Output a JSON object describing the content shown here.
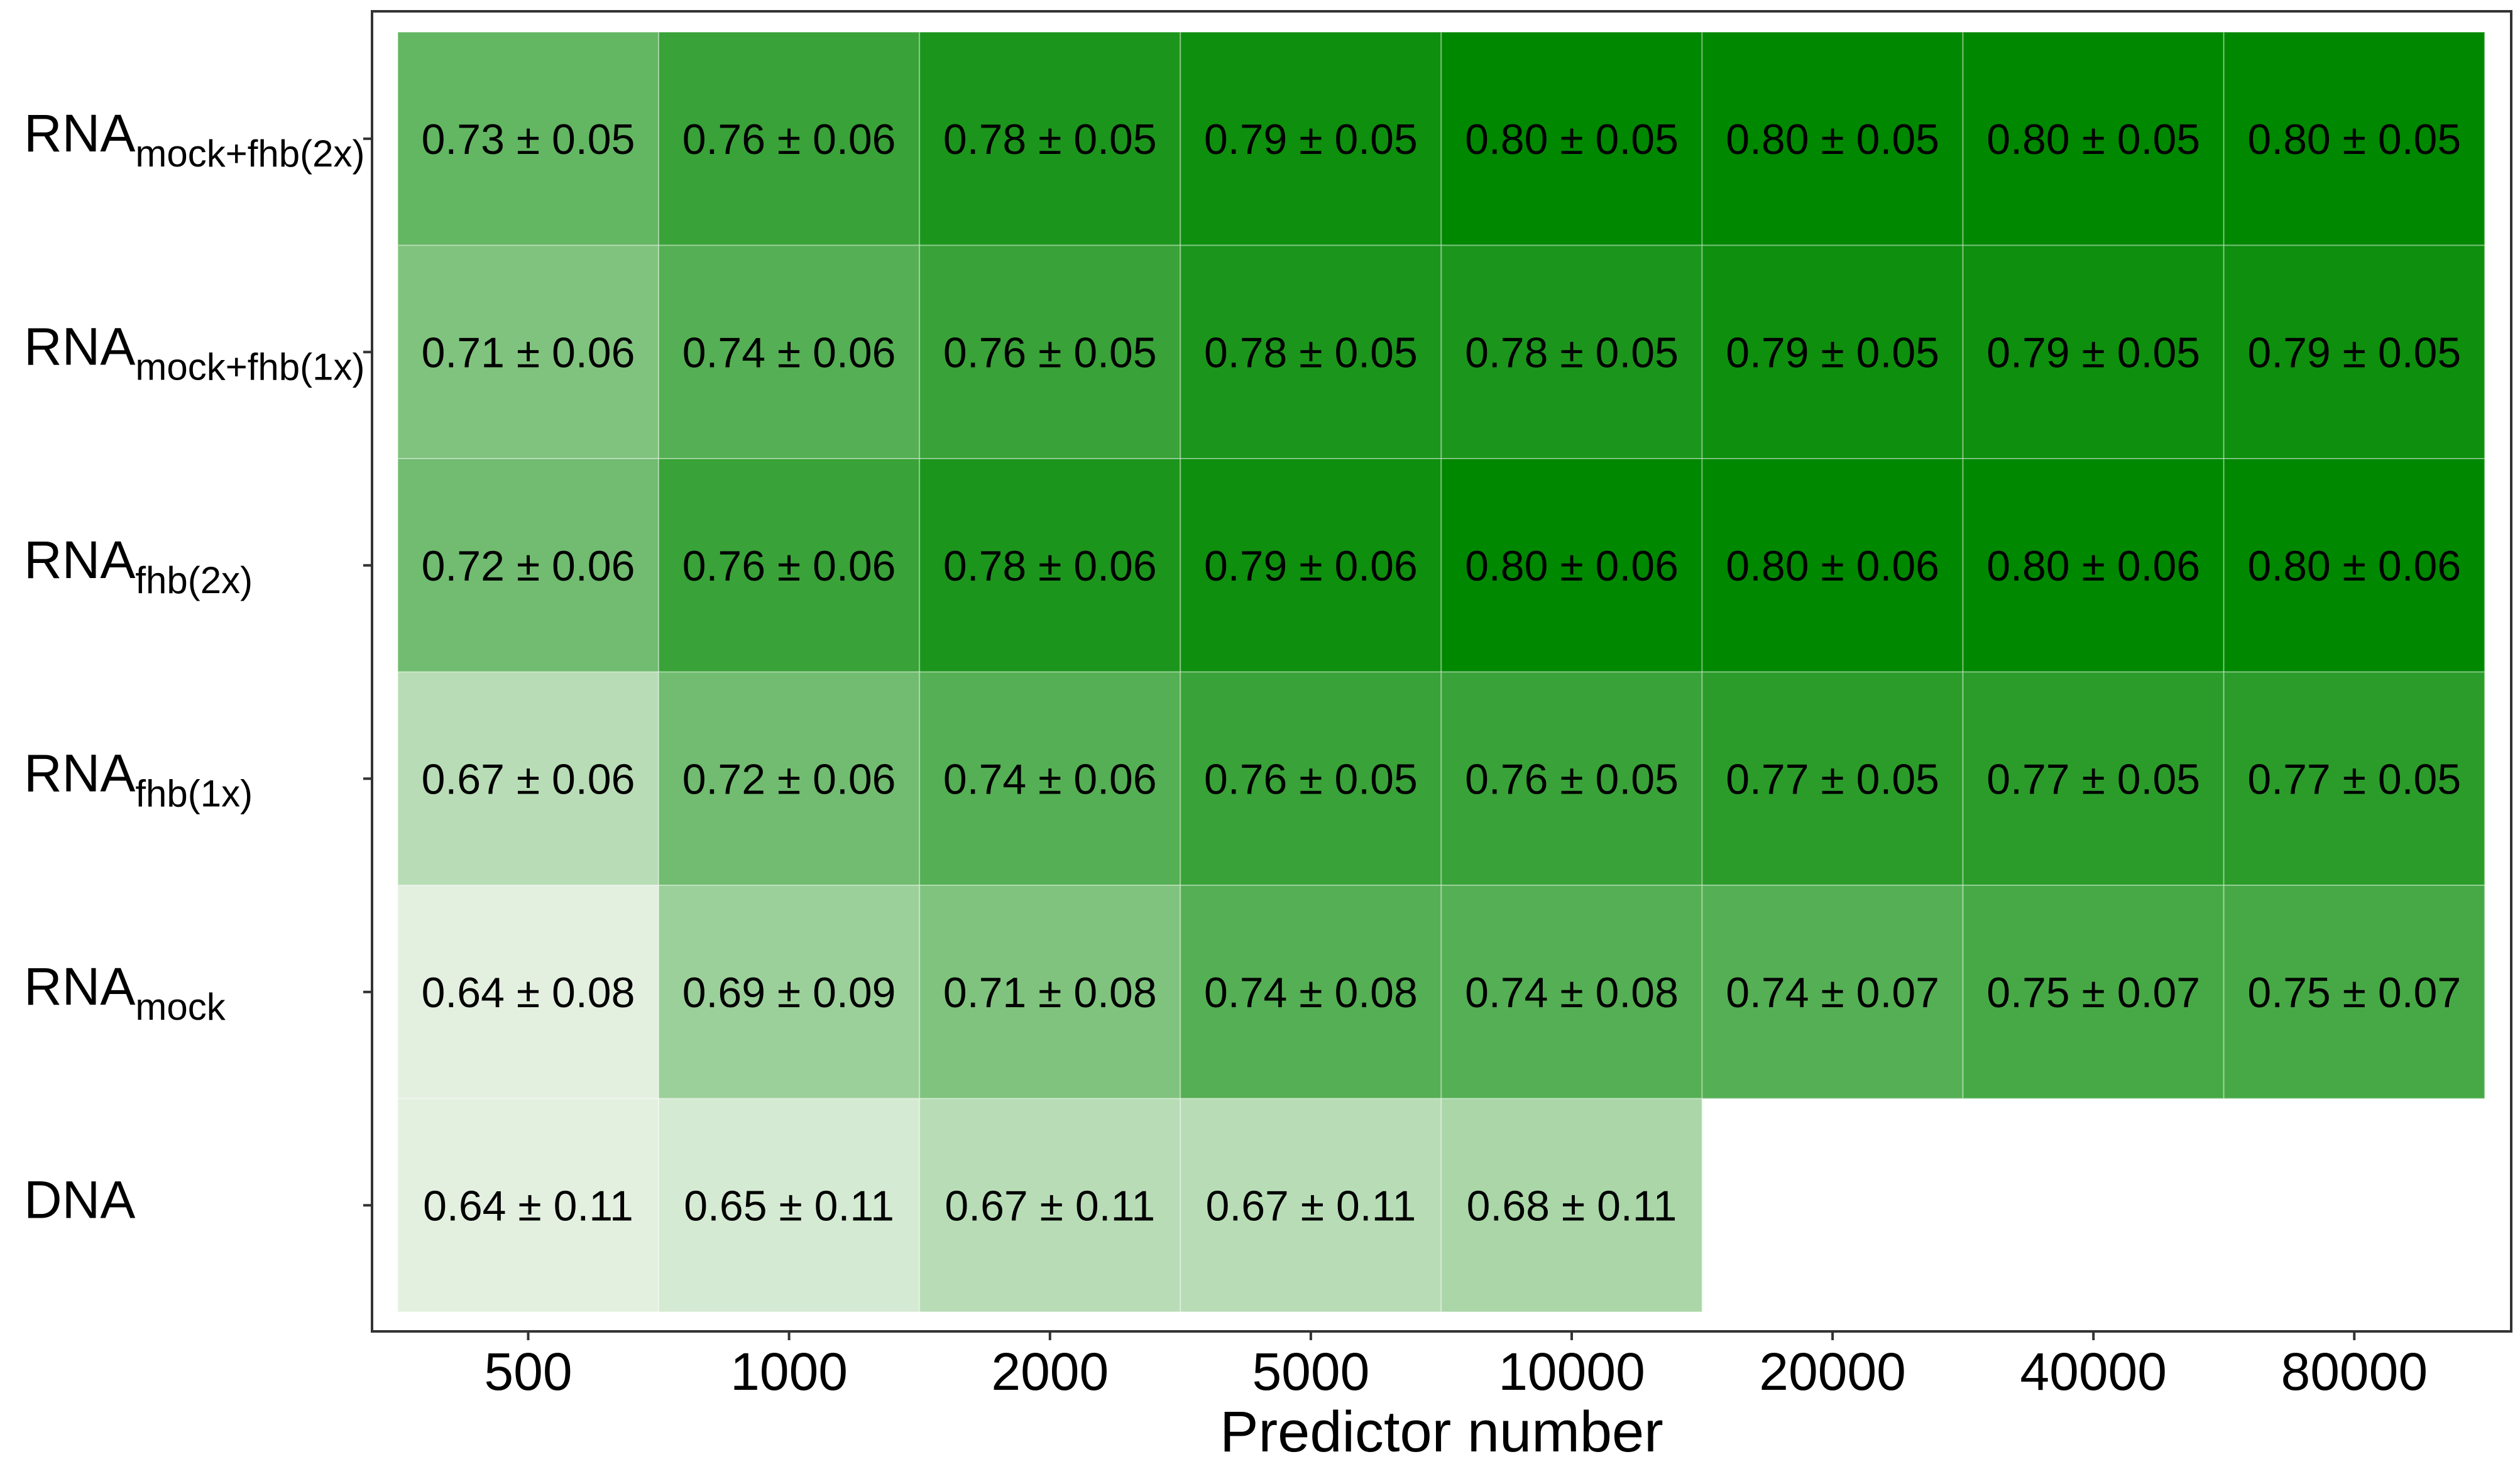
{
  "chart_data": {
    "type": "heatmap",
    "xlabel": "Predictor number",
    "ylabel": "",
    "x_categories": [
      "500",
      "1000",
      "2000",
      "5000",
      "10000",
      "20000",
      "40000",
      "80000"
    ],
    "y_categories": [
      {
        "base": "RNA",
        "sub": "mock+fhb(2x)"
      },
      {
        "base": "RNA",
        "sub": "mock+fhb(1x)"
      },
      {
        "base": "RNA",
        "sub": "fhb(2x)"
      },
      {
        "base": "RNA",
        "sub": "fhb(1x)"
      },
      {
        "base": "RNA",
        "sub": "mock"
      },
      {
        "base": "DNA",
        "sub": ""
      }
    ],
    "values": [
      [
        0.73,
        0.76,
        0.78,
        0.79,
        0.8,
        0.8,
        0.8,
        0.8
      ],
      [
        0.71,
        0.74,
        0.76,
        0.78,
        0.78,
        0.79,
        0.79,
        0.79
      ],
      [
        0.72,
        0.76,
        0.78,
        0.79,
        0.8,
        0.8,
        0.8,
        0.8
      ],
      [
        0.67,
        0.72,
        0.74,
        0.76,
        0.76,
        0.77,
        0.77,
        0.77
      ],
      [
        0.64,
        0.69,
        0.71,
        0.74,
        0.74,
        0.74,
        0.75,
        0.75
      ],
      [
        0.64,
        0.65,
        0.67,
        0.67,
        0.68,
        null,
        null,
        null
      ]
    ],
    "labels": [
      [
        "0.73 ± 0.05",
        "0.76 ± 0.06",
        "0.78 ± 0.05",
        "0.79 ± 0.05",
        "0.80 ± 0.05",
        "0.80 ± 0.05",
        "0.80 ± 0.05",
        "0.80 ± 0.05"
      ],
      [
        "0.71 ± 0.06",
        "0.74 ± 0.06",
        "0.76 ± 0.05",
        "0.78 ± 0.05",
        "0.78 ± 0.05",
        "0.79 ± 0.05",
        "0.79 ± 0.05",
        "0.79 ± 0.05"
      ],
      [
        "0.72 ± 0.06",
        "0.76 ± 0.06",
        "0.78 ± 0.06",
        "0.79 ± 0.06",
        "0.80 ± 0.06",
        "0.80 ± 0.06",
        "0.80 ± 0.06",
        "0.80 ± 0.06"
      ],
      [
        "0.67 ± 0.06",
        "0.72 ± 0.06",
        "0.74 ± 0.06",
        "0.76 ± 0.05",
        "0.76 ± 0.05",
        "0.77 ± 0.05",
        "0.77 ± 0.05",
        "0.77 ± 0.05"
      ],
      [
        "0.64 ± 0.08",
        "0.69 ± 0.09",
        "0.71 ± 0.08",
        "0.74 ± 0.08",
        "0.74 ± 0.08",
        "0.74 ± 0.07",
        "0.75 ± 0.07",
        "0.75 ± 0.07"
      ],
      [
        "0.64 ± 0.11",
        "0.65 ± 0.11",
        "0.67 ± 0.11",
        "0.67 ± 0.11",
        "0.68 ± 0.11",
        null,
        null,
        null
      ]
    ],
    "color_scale": {
      "low_value": 0.63,
      "high_value": 0.8,
      "low_color": "#f1f7ee",
      "high_color": "#008800"
    },
    "grid": false,
    "legend": "none"
  }
}
